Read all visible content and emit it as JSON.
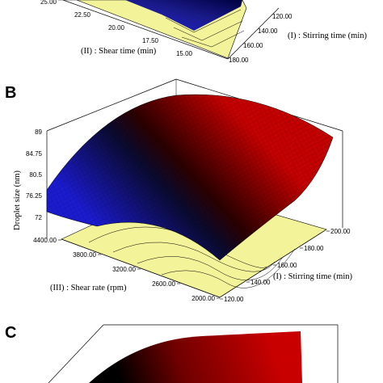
{
  "chart_data": [
    {
      "panel": "",
      "type": "surface",
      "y_ticks_visible": [
        "25.00",
        "22.50",
        "20.00",
        "17.50",
        "15.00"
      ],
      "x_ticks_visible": [
        "120.00",
        "140.00",
        "160.00",
        "180.00"
      ],
      "ylabel": "(II) : Shear time (min)",
      "xlabel": "(I) : Stirring time (min)"
    },
    {
      "panel": "B",
      "type": "surface",
      "title": "",
      "zlabel": "Droplet size (nm)",
      "z_ticks": [
        "72",
        "76.25",
        "80.5",
        "84.75",
        "89"
      ],
      "zlim": [
        72,
        89
      ],
      "y_ticks": [
        "2000.00",
        "2600.00",
        "3200.00",
        "3800.00",
        "4400.00"
      ],
      "ylabel": "(III) : Shear rate (rpm)",
      "x_ticks": [
        "120.00",
        "140.00",
        "160.00",
        "180.00",
        "200.00"
      ],
      "xlabel": "(I) : Stirring time (min)",
      "surface_corners": [
        {
          "x": 120,
          "y": 4400,
          "z": 76.5
        },
        {
          "x": 120,
          "y": 2000,
          "z": 72
        },
        {
          "x": 200,
          "y": 2000,
          "z": 80
        },
        {
          "x": 200,
          "y": 4400,
          "z": 86
        }
      ],
      "colormap": [
        "#1b1bcc",
        "#000000",
        "#c80000"
      ]
    },
    {
      "panel": "C",
      "type": "surface"
    }
  ]
}
